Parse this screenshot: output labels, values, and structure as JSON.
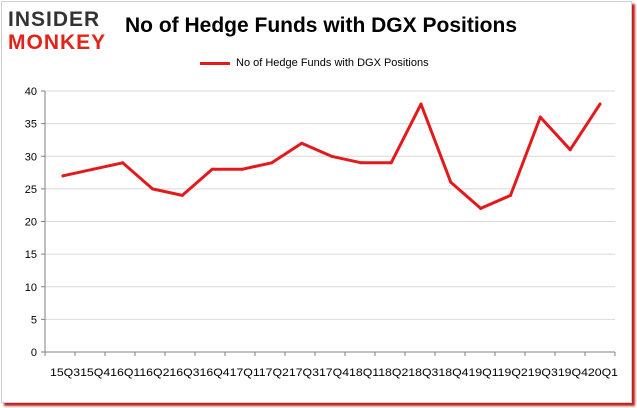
{
  "logo": {
    "line1": "INSIDER",
    "line2": "MONKEY"
  },
  "colors": {
    "series": "#e31a1c",
    "grid": "#d9d9d9",
    "axis": "#808080",
    "brand_red": "#e2231a"
  },
  "chart_data": {
    "type": "line",
    "title": "No of Hedge Funds with DGX Positions",
    "xlabel": "",
    "ylabel": "",
    "categories": [
      "2015Q3",
      "2015Q4",
      "2016Q1",
      "2016Q2",
      "2016Q3",
      "2016Q4",
      "2017Q1",
      "2017Q2",
      "2017Q3",
      "2017Q4",
      "2018Q1",
      "2018Q2",
      "2018Q3",
      "2018Q4",
      "2019Q1",
      "2019Q2",
      "2019Q3",
      "2019Q4",
      "2020Q1"
    ],
    "x_tick_labels": [
      "15Q3",
      "15Q4",
      "16Q1",
      "16Q2",
      "16Q3",
      "16Q4",
      "17Q1",
      "17Q2",
      "17Q3",
      "17Q4",
      "18Q1",
      "18Q2",
      "18Q3",
      "18Q4",
      "19Q1",
      "19Q2",
      "19Q3",
      "19Q4",
      "20Q1"
    ],
    "x_tick_text": "15Q315Q416Q116Q216Q316Q417Q117Q217Q317Q418Q118Q218Q318Q419Q119Q219Q319Q420Q1",
    "series": [
      {
        "name": "No of Hedge Funds with DGX Positions",
        "values": [
          27,
          28,
          29,
          25,
          24,
          28,
          28,
          29,
          32,
          30,
          29,
          29,
          38,
          26,
          22,
          24,
          36,
          31,
          38
        ]
      }
    ],
    "ylim": [
      0,
      40
    ],
    "yticks": [
      0,
      5,
      10,
      15,
      20,
      25,
      30,
      35,
      40
    ],
    "grid": true,
    "legend_position": "top-center"
  }
}
